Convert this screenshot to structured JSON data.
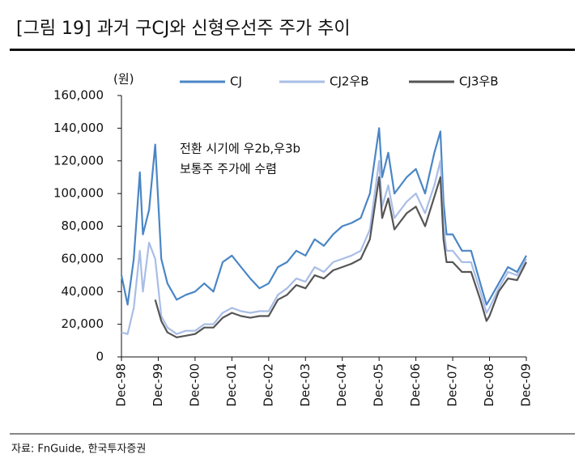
{
  "chart_data": {
    "type": "line",
    "title": "[그림 19] 과거 구CJ와 신형우선주 주가 추이",
    "y_unit": "(원)",
    "annotation": [
      "전환 시기에 우2b,우3b",
      "보통주 주가에 수렴"
    ],
    "source": "자료: FnGuide, 한국투자증권",
    "x": [
      "Dec-98",
      "Feb-99",
      "Apr-99",
      "Jun-99",
      "Jul-99",
      "Sep-99",
      "Nov-99",
      "Jan-00",
      "Mar-00",
      "Jun-00",
      "Sep-00",
      "Dec-00",
      "Mar-01",
      "Jun-01",
      "Sep-01",
      "Dec-01",
      "Mar-02",
      "Jun-02",
      "Sep-02",
      "Dec-02",
      "Mar-03",
      "Jun-03",
      "Sep-03",
      "Dec-03",
      "Mar-04",
      "Jun-04",
      "Sep-04",
      "Dec-04",
      "Mar-05",
      "Jun-05",
      "Sep-05",
      "Dec-05",
      "Jan-06",
      "Mar-06",
      "May-06",
      "Jul-06",
      "Sep-06",
      "Dec-06",
      "Mar-07",
      "Jun-07",
      "Aug-07",
      "Sep-07",
      "Oct-07",
      "Dec-07",
      "Mar-08",
      "Jun-08",
      "Sep-08",
      "Nov-08",
      "Dec-08",
      "Mar-09",
      "Jun-09",
      "Sep-09",
      "Dec-09"
    ],
    "series": [
      {
        "name": "CJ",
        "color": "#4a86c5",
        "values": [
          50000,
          32000,
          60000,
          113000,
          75000,
          90000,
          130000,
          60000,
          45000,
          35000,
          38000,
          40000,
          45000,
          40000,
          58000,
          62000,
          55000,
          48000,
          42000,
          45000,
          55000,
          58000,
          65000,
          62000,
          72000,
          68000,
          75000,
          80000,
          82000,
          85000,
          100000,
          140000,
          110000,
          125000,
          100000,
          105000,
          110000,
          115000,
          100000,
          125000,
          138000,
          95000,
          75000,
          75000,
          65000,
          65000,
          45000,
          32000,
          35000,
          45000,
          55000,
          52000,
          62000
        ]
      },
      {
        "name": "CJ2우B",
        "color": "#a9bde6",
        "values": [
          15000,
          14000,
          30000,
          65000,
          40000,
          70000,
          60000,
          25000,
          18000,
          14000,
          16000,
          16000,
          20000,
          20000,
          27000,
          30000,
          28000,
          27000,
          28000,
          28000,
          38000,
          42000,
          48000,
          46000,
          55000,
          52000,
          58000,
          60000,
          62000,
          65000,
          78000,
          120000,
          92000,
          105000,
          85000,
          90000,
          95000,
          100000,
          88000,
          105000,
          120000,
          80000,
          65000,
          65000,
          58000,
          58000,
          40000,
          27000,
          30000,
          42000,
          52000,
          50000,
          60000
        ]
      },
      {
        "name": "CJ3우B",
        "color": "#555555",
        "values": [
          null,
          null,
          null,
          null,
          null,
          null,
          35000,
          22000,
          15000,
          12000,
          13000,
          14000,
          18000,
          18000,
          24000,
          27000,
          25000,
          24000,
          25000,
          25000,
          35000,
          38000,
          44000,
          42000,
          50000,
          48000,
          53000,
          55000,
          57000,
          60000,
          72000,
          110000,
          85000,
          97000,
          78000,
          83000,
          88000,
          92000,
          80000,
          98000,
          110000,
          72000,
          58000,
          58000,
          52000,
          52000,
          35000,
          22000,
          25000,
          40000,
          48000,
          47000,
          58000
        ]
      }
    ],
    "ylim": [
      0,
      160000
    ],
    "yticks": [
      0,
      {
        "value": 20000,
        "label": "20,000"
      },
      {
        "value": 40000,
        "label": "40,000"
      },
      {
        "value": 60000,
        "label": "60,000"
      },
      {
        "value": 80000,
        "label": "80,000"
      },
      {
        "value": 100000,
        "label": "100,000"
      },
      {
        "value": 120000,
        "label": "120,000"
      },
      {
        "value": 140000,
        "label": "140,000"
      },
      {
        "value": 160000,
        "label": "160,000"
      }
    ],
    "xticks": [
      "Dec-98",
      "Dec-99",
      "Dec-00",
      "Dec-01",
      "Dec-02",
      "Dec-03",
      "Dec-04",
      "Dec-05",
      "Dec-06",
      "Dec-07",
      "Dec-08",
      "Dec-09"
    ],
    "legend": "top"
  }
}
